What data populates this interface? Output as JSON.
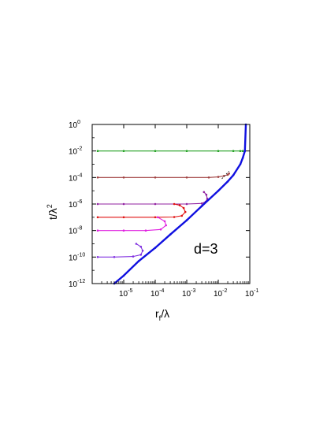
{
  "chart_data": {
    "type": "line",
    "x_scale": "log",
    "y_scale": "log",
    "xlim": [
      1e-06,
      0.1
    ],
    "ylim": [
      1e-12,
      1
    ],
    "x_ticks": [
      {
        "mantissa": "10",
        "exp": "-5",
        "value": 1e-05
      },
      {
        "mantissa": "10",
        "exp": "-4",
        "value": 0.0001
      },
      {
        "mantissa": "10",
        "exp": "-3",
        "value": 0.001
      },
      {
        "mantissa": "10",
        "exp": "-2",
        "value": 0.01
      },
      {
        "mantissa": "10",
        "exp": "-1",
        "value": 0.1
      }
    ],
    "y_ticks": [
      {
        "mantissa": "10",
        "exp": "0",
        "value": 1
      },
      {
        "mantissa": "10",
        "exp": "-2",
        "value": 0.01
      },
      {
        "mantissa": "10",
        "exp": "-4",
        "value": 0.0001
      },
      {
        "mantissa": "10",
        "exp": "-6",
        "value": 1e-06
      },
      {
        "mantissa": "10",
        "exp": "-8",
        "value": 1e-08
      },
      {
        "mantissa": "10",
        "exp": "-10",
        "value": 1e-10
      },
      {
        "mantissa": "10",
        "exp": "-12",
        "value": 1e-12
      }
    ],
    "xlabel": {
      "main": "r",
      "sub": "f",
      "rest": "/λ"
    },
    "ylabel": {
      "main": "t/λ",
      "sup": "2"
    },
    "annotation": "d=3",
    "grid": false,
    "colors": {
      "envelope": "#1010e0",
      "green": "#20a020",
      "brown": "#a04040",
      "purple": "#9020a0",
      "red": "#e01010",
      "magenta": "#e020e0",
      "violet": "#8030e0",
      "dashed": "#000000"
    },
    "envelope": {
      "x": [
        5e-06,
        1e-05,
        3e-05,
        0.0001,
        0.0003,
        0.001,
        0.003,
        0.01,
        0.02,
        0.03,
        0.05,
        0.06,
        0.07,
        0.075
      ],
      "y": [
        1e-12,
        4e-12,
        5e-11,
        5e-10,
        5e-09,
        6e-08,
        7e-07,
        1e-05,
        5e-05,
        0.00015,
        0.001,
        0.003,
        0.01,
        1.0
      ]
    },
    "series": [
      {
        "color_key": "green",
        "plateau_y": 0.01,
        "x": [
          1.5e-06,
          1e-05,
          0.0001,
          0.001,
          0.01,
          0.03,
          0.05,
          0.06
        ],
        "y": [
          0.01,
          0.01,
          0.01,
          0.01,
          0.01,
          0.01,
          0.01,
          0.01
        ]
      },
      {
        "color_key": "brown",
        "plateau_y": 0.0001,
        "x": [
          1.5e-06,
          1e-05,
          0.0001,
          0.001,
          0.005,
          0.01,
          0.015,
          0.02,
          0.022
        ],
        "y": [
          0.0001,
          0.0001,
          0.0001,
          0.0001,
          0.0001,
          0.00011,
          0.00013,
          0.00016,
          0.0002
        ]
      },
      {
        "color_key": "purple",
        "plateau_y": 1e-06,
        "x": [
          1.5e-06,
          1e-05,
          0.0001,
          0.001,
          0.003,
          0.004,
          0.0045,
          0.0042,
          0.0035
        ],
        "y": [
          1e-06,
          1e-06,
          1e-06,
          1e-06,
          1.1e-06,
          1.5e-06,
          2.5e-06,
          5e-06,
          8e-06
        ]
      },
      {
        "color_key": "red",
        "plateau_y": 1e-07,
        "x": [
          1.5e-06,
          1e-05,
          0.0001,
          0.0004,
          0.0007,
          0.0009,
          0.0008,
          0.0006,
          0.0004
        ],
        "y": [
          1e-07,
          1e-07,
          1e-07,
          1.05e-07,
          1.3e-07,
          2.5e-07,
          5e-07,
          8e-07,
          1e-06
        ]
      },
      {
        "color_key": "magenta",
        "plateau_y": 1e-08,
        "x": [
          1.5e-06,
          1e-05,
          5e-05,
          0.00015,
          0.00022,
          0.0002,
          0.00012
        ],
        "y": [
          1e-08,
          1e-08,
          1e-08,
          1.2e-08,
          2.5e-08,
          5e-08,
          1e-07
        ]
      },
      {
        "color_key": "violet",
        "plateau_y": 1e-10,
        "x": [
          1.5e-06,
          5e-06,
          2e-05,
          3.5e-05,
          4e-05,
          3.5e-05,
          2.5e-05
        ],
        "y": [
          1e-10,
          1e-10,
          1.1e-10,
          1.5e-10,
          3e-10,
          6e-10,
          1e-09
        ]
      }
    ],
    "dashed_line": {
      "x": [
        0.013,
        0.022
      ],
      "y": [
        8e-05,
        0.0003
      ]
    }
  }
}
